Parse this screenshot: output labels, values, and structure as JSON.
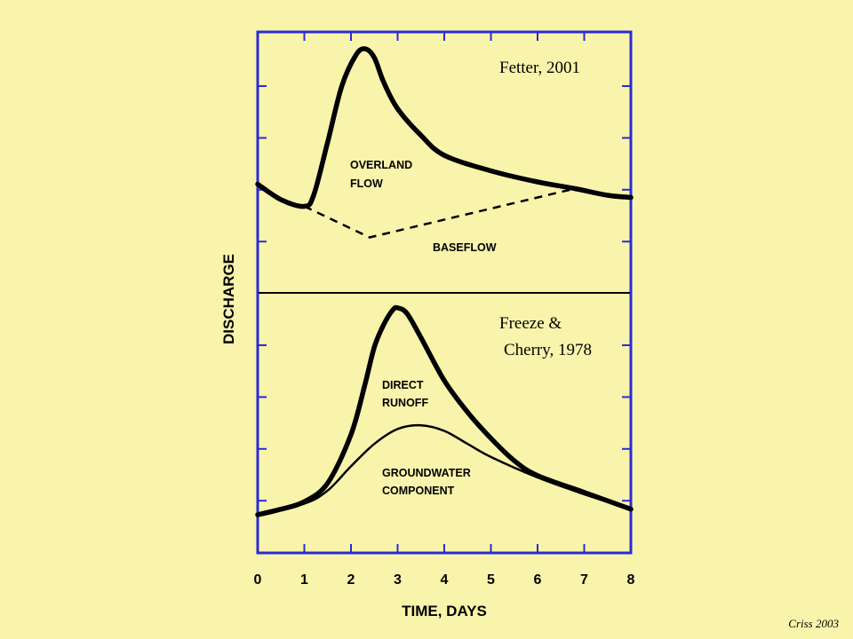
{
  "chart_data": {
    "type": "line",
    "xlabel": "TIME, DAYS",
    "ylabel": "DISCHARGE",
    "xlim": [
      0,
      8
    ],
    "x_ticks": [
      "0",
      "1",
      "2",
      "3",
      "4",
      "5",
      "6",
      "7",
      "8"
    ],
    "panels": [
      {
        "citation": "Fetter, 2001",
        "series": [
          {
            "style": "thick",
            "x": [
              0,
              0.5,
              1.0,
              1.2,
              1.5,
              1.8,
              2.1,
              2.3,
              2.5,
              2.7,
              3.0,
              3.5,
              4.0,
              5.0,
              6.0,
              6.8,
              7.5,
              8.0
            ],
            "y": [
              0.49,
              0.42,
              0.39,
              0.44,
              0.68,
              0.93,
              1.07,
              1.1,
              1.06,
              0.95,
              0.83,
              0.71,
              0.62,
              0.55,
              0.5,
              0.47,
              0.44,
              0.43
            ]
          },
          {
            "style": "dashed",
            "x": [
              1.0,
              2.4,
              6.8
            ],
            "y": [
              0.39,
              0.25,
              0.47
            ]
          }
        ],
        "annotations": [
          {
            "line1": "OVERLAND",
            "line2": "FLOW"
          },
          {
            "line1": "BASEFLOW"
          }
        ]
      },
      {
        "citation_line1": "Freeze &",
        "citation_line2": "Cherry, 1978",
        "series": [
          {
            "style": "thick",
            "x": [
              0,
              0.5,
              1.0,
              1.5,
              2.0,
              2.3,
              2.5,
              2.7,
              2.9,
              3.0,
              3.2,
              3.5,
              4.0,
              4.5,
              5.0,
              5.5,
              6.0,
              7.0,
              8.0
            ],
            "y": [
              0.0,
              0.03,
              0.07,
              0.17,
              0.43,
              0.7,
              0.9,
              1.02,
              1.1,
              1.11,
              1.08,
              0.95,
              0.72,
              0.55,
              0.41,
              0.29,
              0.21,
              0.12,
              0.03
            ]
          },
          {
            "style": "thin",
            "x": [
              0,
              1.0,
              1.5,
              2.0,
              2.5,
              3.0,
              3.5,
              4.0,
              4.5,
              5.0,
              6.0,
              7.0,
              8.0
            ],
            "y": [
              0.0,
              0.06,
              0.13,
              0.26,
              0.38,
              0.46,
              0.48,
              0.45,
              0.38,
              0.31,
              0.2,
              0.11,
              0.03
            ]
          }
        ],
        "annotations": [
          {
            "line1": "DIRECT",
            "line2": "RUNOFF"
          },
          {
            "line1": "GROUNDWATER",
            "line2": "COMPONENT"
          }
        ]
      }
    ]
  },
  "credit": "Criss 2003",
  "colors": {
    "background": "#f9f4ab",
    "frame": "#2b2bd6",
    "curve": "#000000"
  }
}
